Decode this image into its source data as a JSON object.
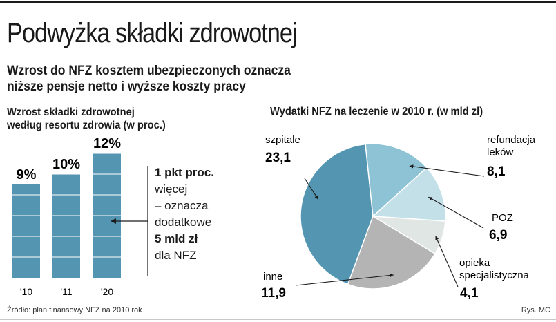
{
  "headline": "Podwyżka składki zdrowotnej",
  "subtitle": {
    "line1": "Wzrost do NFZ kosztem ubezpieczonych oznacza",
    "line2": "niższe pensje netto i wyższe koszty pracy"
  },
  "note": {
    "bold1": "1 pkt proc.",
    "line2": "więcej",
    "line3": "– oznacza",
    "line4": "dodatkowe",
    "bold5": "5 mld zł",
    "line6": "dla NFZ"
  },
  "source": "Źródło: plan finansowy NFZ na 2010 rok",
  "credit": "Rys. MC",
  "colors": {
    "bar": "#5496b2",
    "grid": "#ffffff",
    "pie": [
      "#5496b2",
      "#8ec2d5",
      "#c3e0e8",
      "#dfe6e4",
      "#b4b4b4"
    ]
  },
  "chart_data": [
    {
      "type": "bar",
      "title_line1": "Wzrost składki zdrowotnej",
      "title_line2": "według resortu zdrowia (w proc.)",
      "categories": [
        "'10",
        "'11",
        "'20"
      ],
      "values": [
        9,
        10,
        12
      ],
      "value_labels": [
        "9%",
        "10%",
        "12%"
      ],
      "ylim": [
        0,
        12
      ],
      "grid": true
    },
    {
      "type": "pie",
      "title": "Wydatki NFZ na leczenie w 2010 r. (w mld zł)",
      "slices": [
        {
          "name": "szpitale",
          "value": 23.1,
          "label": "23,1"
        },
        {
          "name": "refundacja leków",
          "name_line1": "refundacja",
          "name_line2": "leków",
          "value": 8.1,
          "label": "8,1"
        },
        {
          "name": "POZ",
          "value": 6.9,
          "label": "6,9"
        },
        {
          "name": "opieka specjalistyczna",
          "name_line1": "opieka",
          "name_line2": "specjalistyczna",
          "value": 4.1,
          "label": "4,1"
        },
        {
          "name": "inne",
          "value": 11.9,
          "label": "11,9"
        }
      ]
    }
  ]
}
